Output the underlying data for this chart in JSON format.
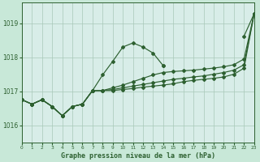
{
  "background_color": "#c8e8d8",
  "plot_bg_color": "#d8ede8",
  "grid_color": "#a8c8b8",
  "line_color": "#2d6030",
  "title": "Graphe pression niveau de la mer (hPa)",
  "xlim": [
    0,
    23
  ],
  "ylim": [
    1015.5,
    1019.6
  ],
  "yticks": [
    1016,
    1017,
    1018,
    1019
  ],
  "series": [
    [
      1016.75,
      1016.62,
      1016.75,
      1016.55,
      1016.3,
      1016.55,
      1016.62,
      1017.0,
      1017.48,
      1017.88,
      1018.32,
      1018.42,
      1018.3,
      1018.15,
      1017.8,
      null,
      null,
      null,
      null,
      null,
      null,
      null,
      1018.6,
      1019.3
    ],
    [
      1016.75,
      1016.62,
      1016.75,
      1016.55,
      1016.3,
      1016.55,
      1016.62,
      1017.0,
      1017.48,
      1017.88,
      1018.32,
      1018.42,
      1018.3,
      1018.15,
      1017.8,
      1017.55,
      1017.45,
      1017.38,
      1017.35,
      null,
      null,
      null,
      null,
      null
    ],
    [
      1016.75,
      1016.62,
      1016.75,
      1016.55,
      1016.3,
      1016.55,
      1016.62,
      1017.0,
      1017.0,
      1017.1,
      1017.18,
      1017.25,
      1017.35,
      1017.45,
      1017.52,
      1017.55,
      1017.55,
      1017.58,
      1017.62,
      1017.68,
      1017.72,
      1017.78,
      1017.92,
      1019.3
    ],
    [
      1016.75,
      1016.62,
      1016.75,
      1016.55,
      1016.3,
      1016.55,
      1016.62,
      1017.0,
      1017.0,
      1017.05,
      1017.1,
      1017.15,
      1017.18,
      1017.22,
      1017.28,
      1017.35,
      1017.38,
      1017.42,
      1017.48,
      1017.52,
      1017.55,
      1017.62,
      1017.78,
      1019.3
    ],
    [
      1016.75,
      1016.62,
      1016.75,
      1016.55,
      1016.3,
      1016.55,
      1016.62,
      1017.0,
      1017.0,
      1017.02,
      1017.05,
      1017.08,
      1017.12,
      1017.15,
      1017.18,
      1017.22,
      1017.28,
      1017.32,
      1017.35,
      1017.38,
      1017.42,
      1017.5,
      1017.68,
      1019.3
    ]
  ]
}
